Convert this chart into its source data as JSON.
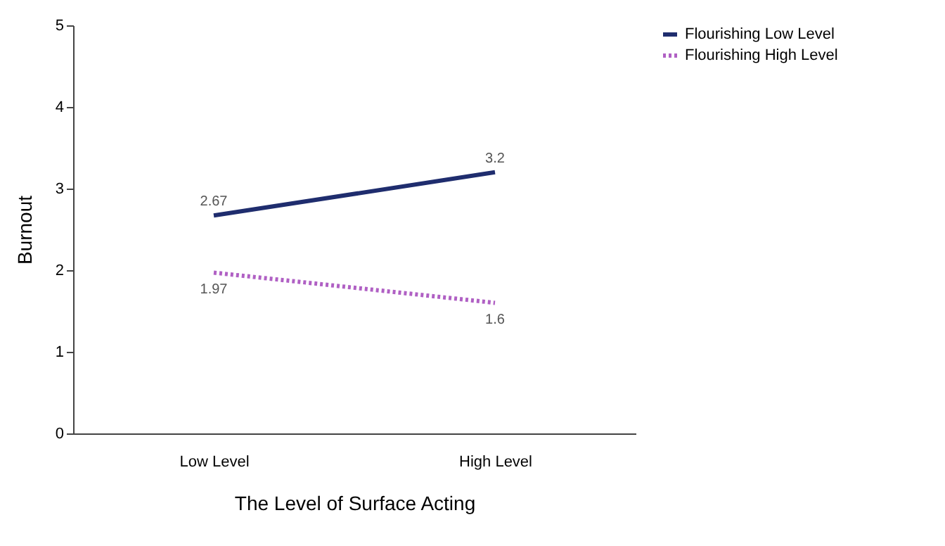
{
  "chart_data": {
    "type": "line",
    "xlabel": "The Level of Surface Acting",
    "ylabel": "Burnout",
    "categories": [
      "Low Level",
      "High Level"
    ],
    "series": [
      {
        "name": "Flourishing Low Level",
        "color": "#1f2d6e",
        "values": [
          2.67,
          3.2
        ],
        "line_style": "solid"
      },
      {
        "name": "Flourishing High Level",
        "color": "#b060c4",
        "values": [
          1.97,
          1.6
        ],
        "line_style": "dotted"
      }
    ],
    "ylim": [
      0,
      5
    ],
    "yticks": [
      0,
      1,
      2,
      3,
      4,
      5
    ],
    "grid": false,
    "legend": "right",
    "marker": "none",
    "data_labels": true
  }
}
